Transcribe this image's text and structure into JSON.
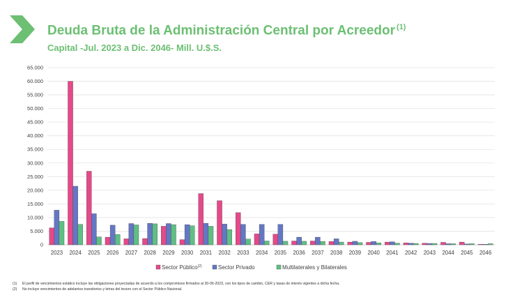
{
  "header": {
    "title": "Deuda Bruta de la Administración Central por Acreedor",
    "title_note": "(1)",
    "subtitle": "Capital -Jul. 2023 a Dic. 2046- Mill. U.$.S."
  },
  "colors": {
    "accent": "#6cbf73",
    "sector_publico": "#e6498a",
    "sector_privado": "#6477c4",
    "multilaterales": "#5fbf84"
  },
  "chart_data": {
    "type": "bar",
    "title": "Deuda Bruta de la Administración Central por Acreedor",
    "subtitle": "Capital -Jul. 2023 a Dic. 2046- Mill. U.$.S.",
    "categories": [
      "2023",
      "2024",
      "2025",
      "2026",
      "2027",
      "2028",
      "2029",
      "2030",
      "2031",
      "2032",
      "2033",
      "2034",
      "2035",
      "2036",
      "2037",
      "2038",
      "2039",
      "2040",
      "2041",
      "2042",
      "2043",
      "2044",
      "2045",
      "2046"
    ],
    "ylim": [
      0,
      65000
    ],
    "yticks": [
      "0",
      "5.000",
      "10.000",
      "15.000",
      "20.000",
      "25.000",
      "30.000",
      "35.000",
      "40.000",
      "45.000",
      "50.000",
      "55.000",
      "60.000",
      "65.000"
    ],
    "grid": true,
    "legend_position": "bottom",
    "series": [
      {
        "name": "Sector Público",
        "name_note": "(2)",
        "color": "#e6498a",
        "values": [
          6200,
          60000,
          27000,
          2800,
          2200,
          2300,
          6800,
          1900,
          18800,
          16200,
          11800,
          4000,
          3900,
          1400,
          1400,
          1200,
          1000,
          900,
          1000,
          700,
          600,
          900,
          1000,
          200
        ]
      },
      {
        "name": "Sector Privado",
        "color": "#6477c4",
        "values": [
          12700,
          21500,
          11400,
          7200,
          7800,
          7900,
          7800,
          7400,
          7900,
          7600,
          7500,
          7500,
          7500,
          2800,
          2800,
          2200,
          1300,
          1200,
          1100,
          600,
          500,
          400,
          300,
          200
        ]
      },
      {
        "name": "Multilaterales y Bilaterales",
        "color": "#5fbf84",
        "values": [
          8600,
          7500,
          2900,
          3800,
          7300,
          7700,
          7400,
          7000,
          6800,
          5600,
          2100,
          1400,
          1300,
          1300,
          1200,
          1000,
          800,
          700,
          600,
          500,
          500,
          400,
          400,
          400
        ]
      }
    ]
  },
  "footnotes": [
    {
      "num": "(1)",
      "text": "El perfil de vencimientos estático incluye las obligaciones proyectadas de acuerdo a los compromisos firmados al 30-06-2023, con los tipos de cambio, CER y tasas de interés vigentes a dicha fecha."
    },
    {
      "num": "(2)",
      "text": "No incluye vencimientos de adelantos transitorios y letras del tesoro con el Sector Público Nacional."
    }
  ]
}
